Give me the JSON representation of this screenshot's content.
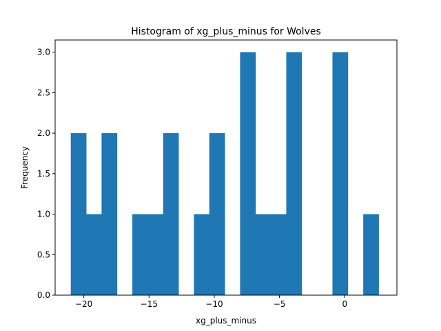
{
  "chart_data": {
    "type": "bar",
    "title": "Histogram of xg_plus_minus for Wolves",
    "xlabel": "xg_plus_minus",
    "ylabel": "Frequency",
    "xlim": [
      -22.2,
      4.0
    ],
    "ylim": [
      0,
      3.15
    ],
    "bin_edges": [
      -21.0,
      -19.82,
      -18.64,
      -17.46,
      -16.28,
      -15.1,
      -13.92,
      -12.74,
      -11.56,
      -10.38,
      -9.2,
      -8.02,
      -6.84,
      -5.66,
      -4.48,
      -3.3,
      -2.12,
      -0.94,
      0.24,
      1.42,
      2.6
    ],
    "counts": [
      2,
      1,
      2,
      0,
      1,
      1,
      2,
      0,
      1,
      2,
      0,
      3,
      1,
      1,
      3,
      0,
      0,
      3,
      0,
      1
    ],
    "xticks": [
      -20,
      -15,
      -10,
      -5,
      0
    ],
    "xtick_labels": [
      "−20",
      "−15",
      "−10",
      "−5",
      "0"
    ],
    "yticks": [
      0,
      0.5,
      1.0,
      1.5,
      2.0,
      2.5,
      3.0
    ],
    "ytick_labels": [
      "0.0",
      "0.5",
      "1.0",
      "1.5",
      "2.0",
      "2.5",
      "3.0"
    ],
    "bar_color": "#1f77b4",
    "grid": false
  }
}
